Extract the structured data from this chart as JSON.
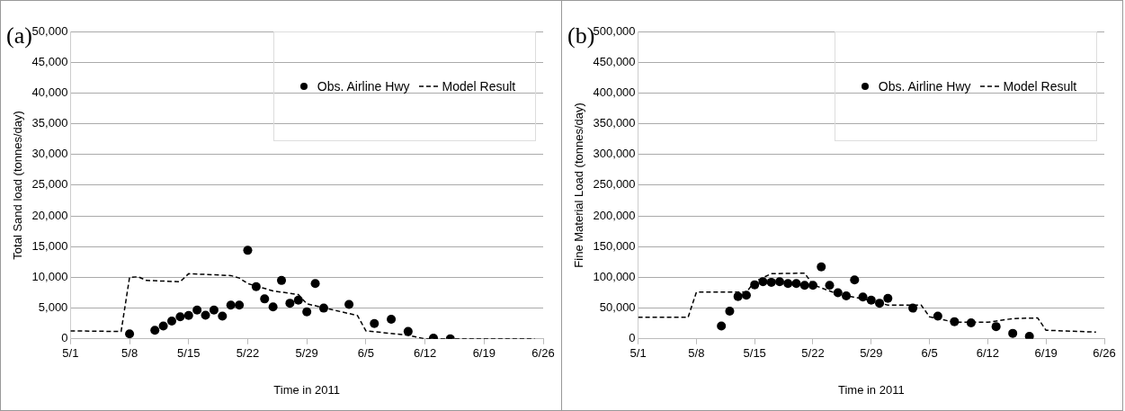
{
  "chart_data": [
    {
      "type": "line",
      "title": "(a)",
      "xlabel": "Time in 2011",
      "ylabel": "Total Sand load (tonnes/day)",
      "xlim": [
        "--05-01",
        "--06-26"
      ],
      "xticks": [
        {
          "value": "--05-01",
          "label": "5/1"
        },
        {
          "value": "--05-08",
          "label": "5/8"
        },
        {
          "value": "--05-15",
          "label": "5/15"
        },
        {
          "value": "--05-22",
          "label": "5/22"
        },
        {
          "value": "--05-29",
          "label": "5/29"
        },
        {
          "value": "--06-05",
          "label": "6/5"
        },
        {
          "value": "--06-12",
          "label": "6/12"
        },
        {
          "value": "--06-19",
          "label": "6/19"
        },
        {
          "value": "--06-26",
          "label": "6/26"
        }
      ],
      "ylim": [
        0,
        50000
      ],
      "yticks": [
        {
          "value": 0,
          "label": "0"
        },
        {
          "value": 5000,
          "label": "5,000"
        },
        {
          "value": 10000,
          "label": "10,000"
        },
        {
          "value": 15000,
          "label": "15,000"
        },
        {
          "value": 20000,
          "label": "20,000"
        },
        {
          "value": 25000,
          "label": "25,000"
        },
        {
          "value": 30000,
          "label": "30,000"
        },
        {
          "value": 35000,
          "label": "35,000"
        },
        {
          "value": 40000,
          "label": "40,000"
        },
        {
          "value": 45000,
          "label": "45,000"
        },
        {
          "value": 50000,
          "label": "50,000"
        }
      ],
      "grid": "y",
      "legend": "top right",
      "series": [
        {
          "name": "Obs. Airline Hwy",
          "type": "scatter",
          "marker": "circle",
          "color": "#000000",
          "x": [
            "--05-08",
            "--05-11",
            "--05-12",
            "--05-13",
            "--05-14",
            "--05-15",
            "--05-16",
            "--05-17",
            "--05-18",
            "--05-19",
            "--05-20",
            "--05-21",
            "--05-22",
            "--05-23",
            "--05-24",
            "--05-25",
            "--05-26",
            "--05-27",
            "--05-28",
            "--05-29",
            "--05-30",
            "--05-31",
            "--06-03",
            "--06-06",
            "--06-08",
            "--06-10",
            "--06-13",
            "--06-15"
          ],
          "values": [
            800,
            1400,
            2100,
            2900,
            3600,
            3800,
            4700,
            3850,
            4700,
            3700,
            5500,
            5500,
            14400,
            8500,
            6500,
            5200,
            9500,
            5800,
            6300,
            4400,
            9000,
            5000,
            5600,
            2500,
            3200,
            1200,
            100,
            0
          ]
        },
        {
          "name": "Model Result",
          "marker": "none",
          "line_style": "dashed",
          "color": "#000000",
          "x": [
            "--05-01",
            "--05-07",
            "--05-08",
            "--05-09",
            "--05-10",
            "--05-14",
            "--05-15",
            "--05-20",
            "--05-21",
            "--05-22",
            "--05-25",
            "--05-28",
            "--05-29",
            "--06-04",
            "--06-05",
            "--06-10",
            "--06-12",
            "--06-25"
          ],
          "values": [
            1300,
            1200,
            10000,
            10100,
            9500,
            9300,
            10600,
            10300,
            9900,
            9000,
            7800,
            7200,
            5700,
            3800,
            1300,
            600,
            0,
            0
          ]
        }
      ]
    },
    {
      "type": "line",
      "title": "(b)",
      "xlabel": "Time in 2011",
      "ylabel": "Fine Material Load (tonnes/day)",
      "xlim": [
        "--05-01",
        "--06-26"
      ],
      "xticks": [
        {
          "value": "--05-01",
          "label": "5/1"
        },
        {
          "value": "--05-08",
          "label": "5/8"
        },
        {
          "value": "--05-15",
          "label": "5/15"
        },
        {
          "value": "--05-22",
          "label": "5/22"
        },
        {
          "value": "--05-29",
          "label": "5/29"
        },
        {
          "value": "--06-05",
          "label": "6/5"
        },
        {
          "value": "--06-12",
          "label": "6/12"
        },
        {
          "value": "--06-19",
          "label": "6/19"
        },
        {
          "value": "--06-26",
          "label": "6/26"
        }
      ],
      "ylim": [
        0,
        500000
      ],
      "yticks": [
        {
          "value": 0,
          "label": "0"
        },
        {
          "value": 50000,
          "label": "50,000"
        },
        {
          "value": 100000,
          "label": "100,000"
        },
        {
          "value": 150000,
          "label": "150,000"
        },
        {
          "value": 200000,
          "label": "200,000"
        },
        {
          "value": 250000,
          "label": "250,000"
        },
        {
          "value": 300000,
          "label": "300,000"
        },
        {
          "value": 350000,
          "label": "350,000"
        },
        {
          "value": 400000,
          "label": "400,000"
        },
        {
          "value": 450000,
          "label": "450,000"
        },
        {
          "value": 500000,
          "label": "500,000"
        }
      ],
      "grid": "y",
      "legend": "top right",
      "series": [
        {
          "name": "Obs. Airline Hwy",
          "type": "scatter",
          "marker": "circle",
          "color": "#000000",
          "x": [
            "--05-11",
            "--05-12",
            "--05-13",
            "--05-14",
            "--05-15",
            "--05-16",
            "--05-17",
            "--05-18",
            "--05-19",
            "--05-20",
            "--05-21",
            "--05-22",
            "--05-23",
            "--05-24",
            "--05-25",
            "--05-26",
            "--05-27",
            "--05-28",
            "--05-29",
            "--05-30",
            "--05-31",
            "--06-03",
            "--06-06",
            "--06-08",
            "--06-10",
            "--06-13",
            "--06-15",
            "--06-17"
          ],
          "values": [
            21000,
            45000,
            69000,
            71000,
            88000,
            93000,
            92000,
            93000,
            90000,
            90000,
            87000,
            87000,
            117000,
            87000,
            75000,
            70000,
            96000,
            68000,
            63000,
            58000,
            66000,
            50000,
            37000,
            28000,
            26000,
            20000,
            9000,
            4000
          ]
        },
        {
          "name": "Model Result",
          "marker": "none",
          "line_style": "dashed",
          "color": "#000000",
          "x": [
            "--05-01",
            "--05-07",
            "--05-08",
            "--05-14",
            "--05-15",
            "--05-17",
            "--05-21",
            "--05-22",
            "--05-25",
            "--05-28",
            "--05-31",
            "--06-04",
            "--06-05",
            "--06-08",
            "--06-12",
            "--06-15",
            "--06-18",
            "--06-19",
            "--06-25"
          ],
          "values": [
            35000,
            35000,
            76000,
            76000,
            93000,
            106000,
            107000,
            88000,
            73000,
            65000,
            55000,
            55000,
            36000,
            27000,
            27000,
            33000,
            34000,
            14000,
            11000
          ]
        }
      ]
    }
  ]
}
